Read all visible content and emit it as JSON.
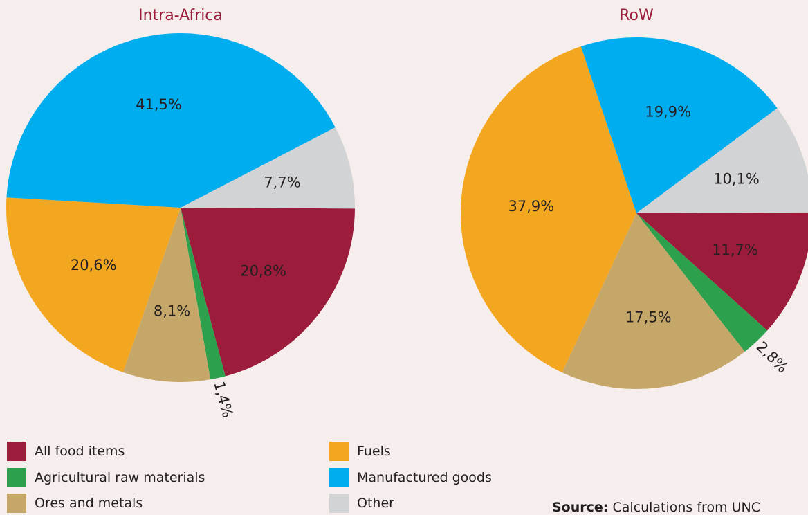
{
  "chart_data": [
    {
      "type": "pie",
      "title": "Intra-Africa",
      "slices": [
        {
          "name": "All food items",
          "value": 20.8,
          "label": "20,8%",
          "color": "#9b1c3b"
        },
        {
          "name": "Agricultural raw materials",
          "value": 1.4,
          "label": "1,4%",
          "color": "#2ca04c"
        },
        {
          "name": "Ores and metals",
          "value": 8.1,
          "label": "8,1%",
          "color": "#c6a76a"
        },
        {
          "name": "Fuels",
          "value": 20.6,
          "label": "20,6%",
          "color": "#f3a620"
        },
        {
          "name": "Manufactured goods",
          "value": 41.5,
          "label": "41,5%",
          "color": "#00adee"
        },
        {
          "name": "Other",
          "value": 7.7,
          "label": "7,7%",
          "color": "#d2d3d5"
        }
      ]
    },
    {
      "type": "pie",
      "title": "RoW",
      "slices": [
        {
          "name": "All food items",
          "value": 11.7,
          "label": "11,7%",
          "color": "#9b1c3b"
        },
        {
          "name": "Agricultural raw materials",
          "value": 2.8,
          "label": "2,8%",
          "color": "#2ca04c"
        },
        {
          "name": "Ores and metals",
          "value": 17.5,
          "label": "17,5%",
          "color": "#c6a76a"
        },
        {
          "name": "Fuels",
          "value": 37.9,
          "label": "37,9%",
          "color": "#f3a620"
        },
        {
          "name": "Manufactured goods",
          "value": 19.9,
          "label": "19,9%",
          "color": "#00adee"
        },
        {
          "name": "Other",
          "value": 10.1,
          "label": "10,1%",
          "color": "#d2d3d5"
        }
      ]
    }
  ],
  "legend": [
    {
      "label": "All food items",
      "color": "#9b1c3b"
    },
    {
      "label": "Agricultural raw materials",
      "color": "#2ca04c"
    },
    {
      "label": "Ores and metals",
      "color": "#c6a76a"
    },
    {
      "label": "Fuels",
      "color": "#f3a620"
    },
    {
      "label": "Manufactured goods",
      "color": "#00adee"
    },
    {
      "label": "Other",
      "color": "#d2d3d5"
    }
  ],
  "source": {
    "prefix": "Source:",
    "text": "Calculations from UNC"
  }
}
